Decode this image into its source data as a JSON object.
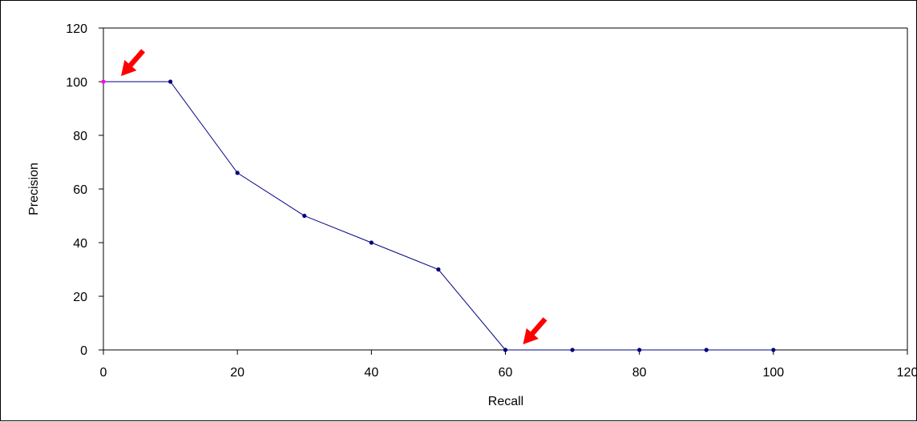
{
  "chart_data": {
    "type": "line",
    "title": "",
    "xlabel": "Recall",
    "ylabel": "Precision",
    "xlim": [
      0,
      120
    ],
    "ylim": [
      0,
      120
    ],
    "x_ticks": [
      0,
      20,
      40,
      60,
      80,
      100,
      120
    ],
    "y_ticks": [
      0,
      20,
      40,
      60,
      80,
      100,
      120
    ],
    "x_tick_labels": [
      "0",
      "20",
      "40",
      "60",
      "80",
      "100",
      "120"
    ],
    "y_tick_labels": [
      "0",
      "20",
      "40",
      "60",
      "80",
      "100",
      "120"
    ],
    "grid": false,
    "legend": "none",
    "series": [
      {
        "x": [
          0,
          10,
          20,
          30,
          40,
          50,
          60,
          70,
          80,
          90,
          100
        ],
        "y": [
          100,
          100,
          66,
          50,
          40,
          30,
          0,
          0,
          0,
          0,
          0
        ],
        "color": "#000080",
        "highlight_point_color": "#ff00ff"
      }
    ],
    "annotations": [
      {
        "type": "arrow",
        "target_x": 0,
        "target_y": 100,
        "color": "#ff0000"
      },
      {
        "type": "arrow",
        "target_x": 60,
        "target_y": 0,
        "color": "#ff0000"
      }
    ]
  }
}
